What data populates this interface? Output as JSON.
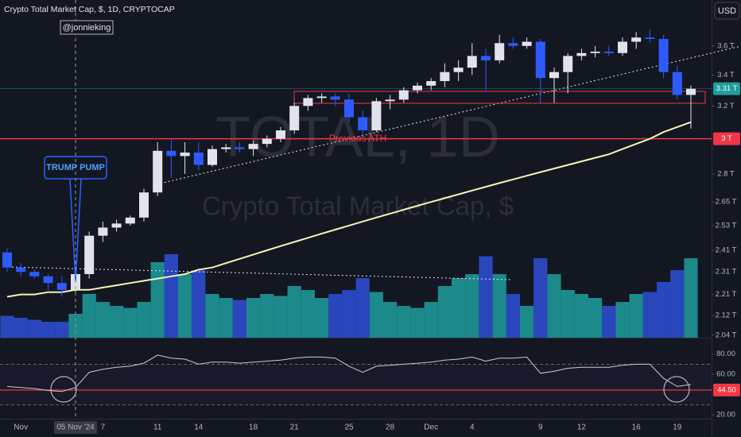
{
  "chart_data": {
    "type": "candlestick",
    "title": "Crypto Total Market Cap, $, 1D, CRYPTOCAP",
    "author": "@jonnieking",
    "currency": "USD",
    "watermark": "TOTAL, 1D",
    "watermark_subtitle": "Crypto Total Market Cap, $",
    "annotation": "TRUMP PUMP",
    "categories": [
      null,
      "Nov",
      null,
      null,
      null,
      "05 Nov '24",
      null,
      "7",
      null,
      null,
      null,
      "11",
      null,
      null,
      "14",
      null,
      null,
      null,
      "18",
      null,
      null,
      "21",
      null,
      null,
      null,
      "25",
      null,
      null,
      "28",
      null,
      null,
      "Dec",
      null,
      null,
      "4",
      null,
      null,
      null,
      null,
      "9",
      null,
      null,
      "12",
      null,
      null,
      null,
      "16",
      null,
      null,
      "19",
      null
    ],
    "open": [
      2.4,
      2.33,
      2.31,
      2.29,
      2.26,
      2.23,
      2.3,
      2.48,
      2.52,
      2.54,
      2.57,
      2.7,
      2.93,
      2.9,
      2.92,
      2.85,
      2.94,
      2.95,
      2.94,
      2.97,
      3.0,
      3.05,
      3.2,
      3.25,
      3.26,
      3.24,
      3.13,
      3.05,
      3.23,
      3.24,
      3.3,
      3.33,
      3.36,
      3.42,
      3.45,
      3.53,
      3.5,
      3.62,
      3.6,
      3.63,
      3.38,
      3.42,
      3.53,
      3.55,
      3.56,
      3.55,
      3.63,
      3.66,
      3.65,
      3.42,
      3.27
    ],
    "high": [
      2.42,
      2.35,
      2.32,
      2.3,
      2.29,
      2.32,
      2.5,
      2.55,
      2.56,
      2.58,
      2.72,
      2.98,
      3.0,
      2.98,
      2.98,
      2.96,
      2.97,
      2.98,
      2.99,
      3.02,
      3.07,
      3.22,
      3.27,
      3.28,
      3.28,
      3.28,
      3.17,
      3.25,
      3.27,
      3.32,
      3.35,
      3.38,
      3.48,
      3.5,
      3.62,
      3.58,
      3.68,
      3.66,
      3.66,
      3.65,
      3.45,
      3.55,
      3.58,
      3.6,
      3.6,
      3.66,
      3.7,
      3.72,
      3.68,
      3.46,
      3.33
    ],
    "low": [
      2.31,
      2.29,
      2.28,
      2.22,
      2.2,
      2.22,
      2.28,
      2.45,
      2.5,
      2.53,
      2.55,
      2.68,
      2.78,
      2.8,
      2.82,
      2.84,
      2.92,
      2.92,
      2.9,
      2.95,
      2.98,
      3.03,
      3.17,
      3.22,
      3.2,
      3.1,
      3.02,
      3.04,
      3.18,
      3.22,
      3.28,
      3.3,
      3.32,
      3.36,
      3.4,
      3.3,
      3.48,
      3.58,
      3.58,
      3.22,
      3.22,
      3.28,
      3.5,
      3.52,
      3.53,
      3.53,
      3.58,
      3.62,
      3.38,
      3.24,
      3.06
    ],
    "close": [
      2.33,
      2.31,
      2.29,
      2.26,
      2.23,
      2.3,
      2.48,
      2.52,
      2.54,
      2.57,
      2.7,
      2.93,
      2.9,
      2.92,
      2.85,
      2.94,
      2.95,
      2.94,
      2.97,
      3.0,
      3.05,
      3.2,
      3.25,
      3.26,
      3.24,
      3.13,
      3.05,
      3.23,
      3.24,
      3.3,
      3.33,
      3.36,
      3.42,
      3.45,
      3.53,
      3.5,
      3.62,
      3.6,
      3.63,
      3.38,
      3.42,
      3.53,
      3.55,
      3.56,
      3.55,
      3.63,
      3.66,
      3.65,
      3.42,
      3.27,
      3.31
    ],
    "up_color": "#e0e3eb",
    "down_color": "#2e5bff",
    "log_scale": true,
    "grid": false,
    "ylim": [
      2.03,
      3.94
    ],
    "yticks": [
      {
        "value": 2.04,
        "label": "2.04 T"
      },
      {
        "value": 2.12,
        "label": "2.12 T"
      },
      {
        "value": 2.21,
        "label": "2.21 T"
      },
      {
        "value": 2.31,
        "label": "2.31 T"
      },
      {
        "value": 2.41,
        "label": "2.41 T"
      },
      {
        "value": 2.53,
        "label": "2.53 T"
      },
      {
        "value": 2.65,
        "label": "2.65 T"
      },
      {
        "value": 2.8,
        "label": "2.8 T"
      },
      {
        "value": 3.2,
        "label": "3.2 T"
      },
      {
        "value": 3.4,
        "label": "3.4 T"
      },
      {
        "value": 3.6,
        "label": "3.6 T"
      }
    ],
    "last_price": {
      "value": 3.31,
      "label": "3.31 T"
    },
    "level": {
      "value": 3.0,
      "label": "3 T",
      "name": "Previous ATH",
      "color": "#f23645"
    },
    "ma": {
      "color": "#f5f5b8",
      "values": [
        2.2,
        2.21,
        2.21,
        2.22,
        2.22,
        2.23,
        2.23,
        2.24,
        2.25,
        2.26,
        2.27,
        2.28,
        2.29,
        2.3,
        2.32,
        2.33,
        2.35,
        2.37,
        2.39,
        2.41,
        2.43,
        2.45,
        2.47,
        2.49,
        2.51,
        2.53,
        2.55,
        2.57,
        2.59,
        2.61,
        2.63,
        2.65,
        2.67,
        2.69,
        2.71,
        2.73,
        2.75,
        2.77,
        2.79,
        2.81,
        2.83,
        2.85,
        2.87,
        2.89,
        2.91,
        2.94,
        2.97,
        3.0,
        3.04,
        3.07,
        3.1
      ]
    },
    "volume": {
      "ylim": [
        0,
        100
      ],
      "up_color": "#1f9e9e",
      "down_color": "#2f4fd8",
      "values": [
        22,
        20,
        18,
        16,
        16,
        24,
        44,
        36,
        32,
        30,
        36,
        76,
        84,
        64,
        68,
        44,
        40,
        38,
        40,
        44,
        42,
        52,
        48,
        40,
        44,
        48,
        60,
        46,
        36,
        32,
        30,
        36,
        52,
        60,
        64,
        82,
        64,
        44,
        32,
        80,
        64,
        48,
        44,
        40,
        32,
        36,
        44,
        46,
        56,
        68,
        80
      ]
    },
    "rsi": {
      "color": "#c9ccd4",
      "ylim": [
        15.4,
        93.8
      ],
      "bands": [
        30,
        70
      ],
      "yticks": [
        {
          "value": 80,
          "label": "80.00"
        },
        {
          "value": 60,
          "label": "60.00"
        },
        {
          "value": 20,
          "label": "20.00"
        }
      ],
      "level": {
        "value": 44.5,
        "label": "44.50",
        "color": "#f23645"
      },
      "values": [
        48,
        47,
        46,
        44,
        43,
        47,
        62,
        65,
        67,
        68,
        71,
        79,
        76,
        75,
        70,
        72,
        72,
        71,
        72,
        73,
        74,
        76,
        77,
        77,
        76,
        68,
        62,
        68,
        69,
        70,
        71,
        72,
        74,
        75,
        77,
        73,
        76,
        76,
        77,
        61,
        63,
        66,
        67,
        67,
        67,
        69,
        70,
        70,
        56,
        48,
        50
      ]
    }
  }
}
